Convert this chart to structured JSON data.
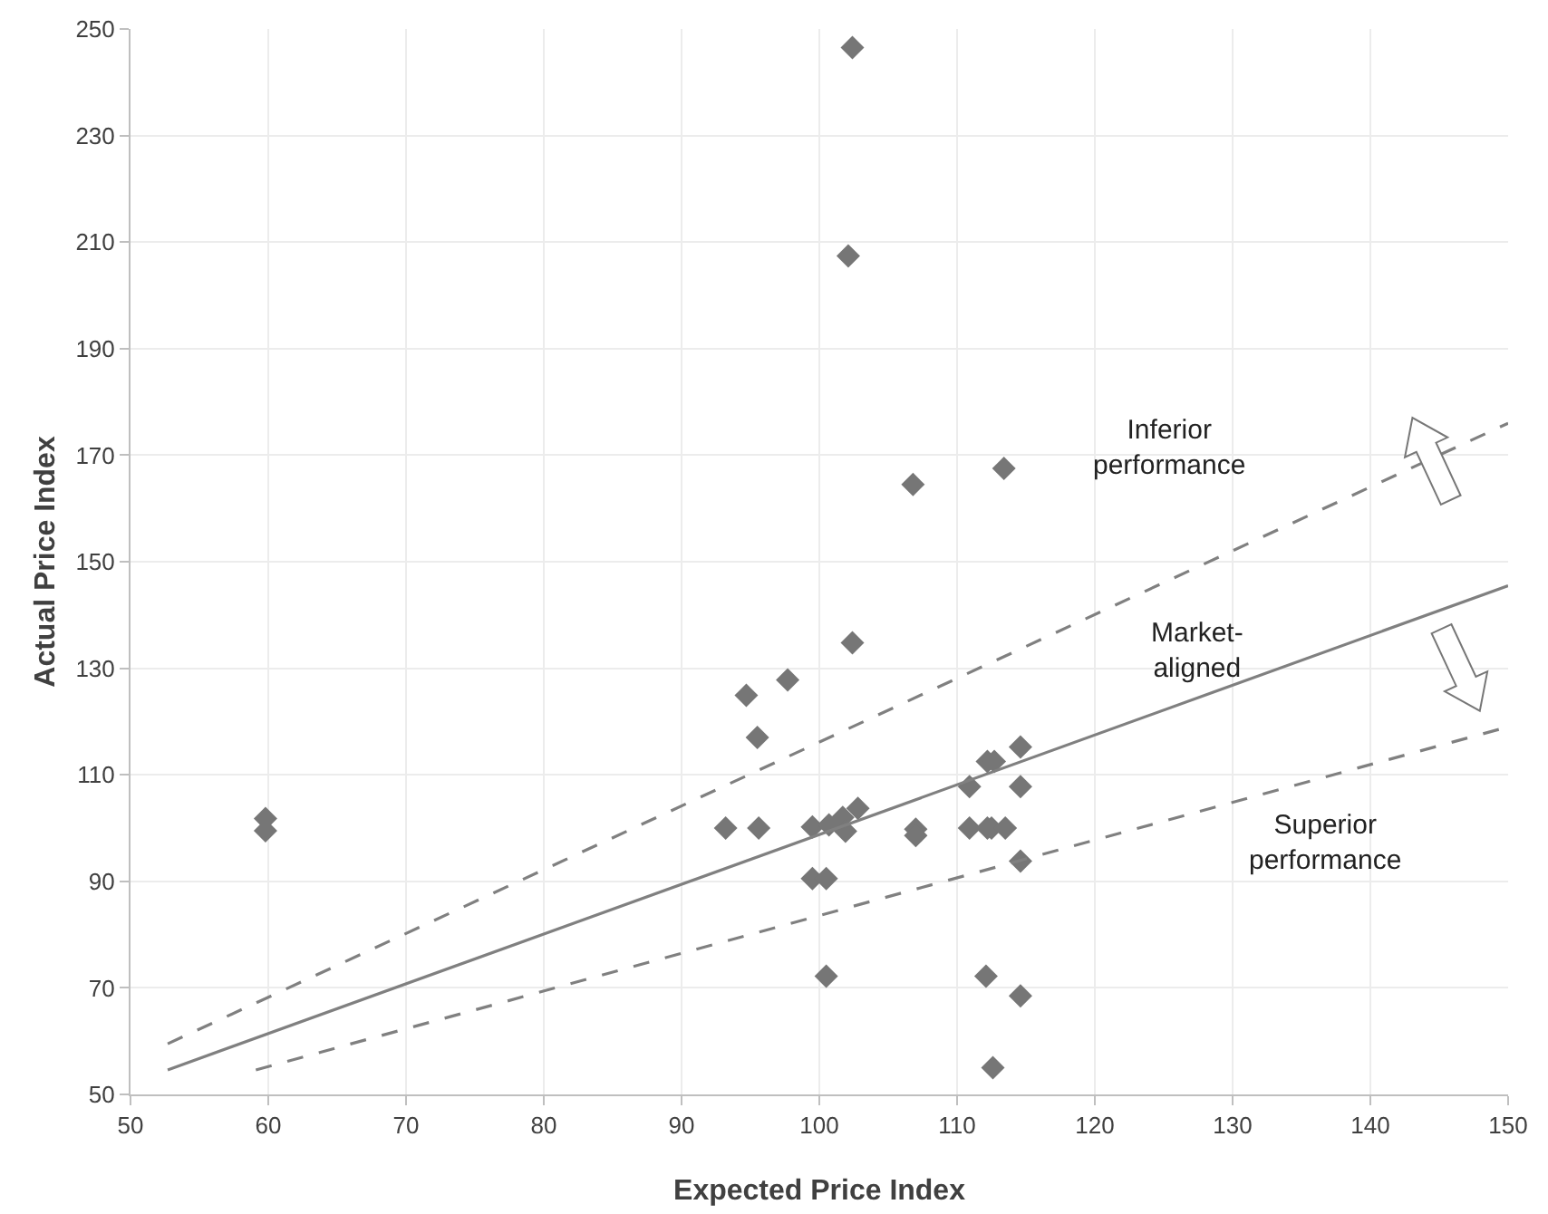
{
  "chart_data": {
    "type": "scatter",
    "xlabel": "Expected Price Index",
    "ylabel": "Actual Price Index",
    "xlim": [
      50,
      150
    ],
    "xticks": [
      50,
      60,
      70,
      80,
      90,
      100,
      110,
      120,
      130,
      140,
      150
    ],
    "ylim": [
      50,
      250
    ],
    "yticks": [
      50,
      70,
      90,
      110,
      130,
      150,
      170,
      190,
      210,
      230,
      250
    ],
    "grid": true,
    "series": [
      {
        "marker": "diamond",
        "color": "#767676",
        "x": [
          102.4,
          102.1,
          102.4,
          97.7,
          94.7,
          95.5,
          93.2,
          95.6,
          99.5,
          100.7,
          101.7,
          101.9,
          102.8,
          99.5,
          100.5,
          107,
          107,
          110.9,
          110.9,
          112.2,
          112.7,
          112.2,
          112.5,
          113.5,
          114.6,
          114.6,
          114.6,
          114.6,
          100.5,
          112.1,
          112.6,
          106.8,
          113.4,
          59.8,
          59.8
        ],
        "values": [
          246.5,
          207.4,
          134.8,
          127.8,
          124.9,
          117,
          100,
          100,
          100.2,
          100.6,
          102,
          99.4,
          103.7,
          90.5,
          90.5,
          99.8,
          98.6,
          107.8,
          100,
          112.5,
          112.5,
          100,
          100,
          100,
          115.2,
          107.8,
          93.8,
          68.5,
          72.2,
          72.2,
          55,
          164.5,
          167.5,
          101.8,
          99.5
        ]
      },
      {
        "type": "line",
        "marker": "none",
        "color": "#808080",
        "line_style": "solid",
        "x": [
          52.7,
          150
        ],
        "values": [
          54.6,
          145.5
        ]
      },
      {
        "type": "line",
        "marker": "none",
        "color": "#808080",
        "line_style": "dashed",
        "x": [
          52.7,
          150
        ],
        "values": [
          59.5,
          176
        ]
      },
      {
        "type": "line",
        "marker": "none",
        "color": "#808080",
        "line_style": "dashed",
        "x": [
          59.1,
          150
        ],
        "values": [
          54.6,
          119
        ]
      }
    ],
    "annotations": [
      "Inferior\nperformance",
      "Market-\naligned",
      "Superior\nperformance"
    ]
  }
}
